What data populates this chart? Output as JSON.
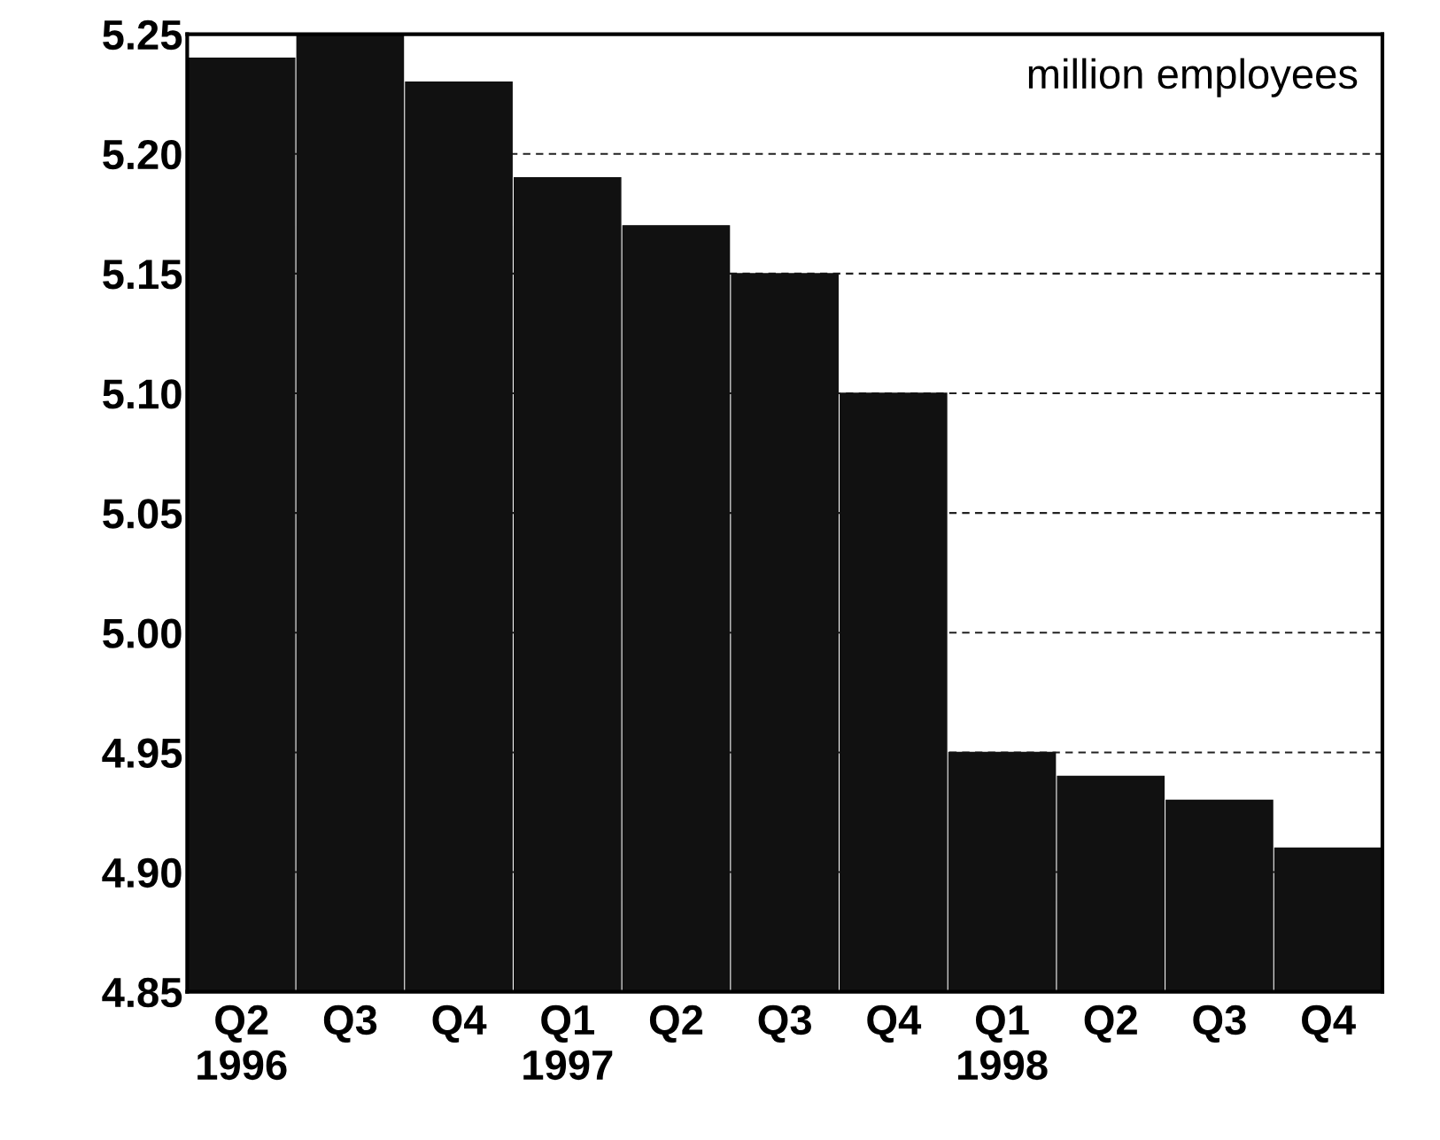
{
  "chart_data": {
    "type": "bar",
    "ylabel": "million employees",
    "categories": [
      "Q2\n1996",
      "Q3",
      "Q4",
      "Q1\n1997",
      "Q2",
      "Q3",
      "Q4",
      "Q1\n1998",
      "Q2",
      "Q3",
      "Q4"
    ],
    "values": [
      5.24,
      5.25,
      5.23,
      5.19,
      5.17,
      5.15,
      5.1,
      4.95,
      4.94,
      4.93,
      4.91
    ],
    "color": "#111111",
    "ylim": [
      4.85,
      5.25
    ],
    "yticks": [
      {
        "value": 4.85,
        "label": "4.85"
      },
      {
        "value": 4.9,
        "label": "4.90"
      },
      {
        "value": 4.95,
        "label": "4.95"
      },
      {
        "value": 5.0,
        "label": "5.00"
      },
      {
        "value": 5.05,
        "label": "5.05"
      },
      {
        "value": 5.1,
        "label": "5.10"
      },
      {
        "value": 5.15,
        "label": "5.15"
      },
      {
        "value": 5.2,
        "label": "5.20"
      },
      {
        "value": 5.25,
        "label": "5.25"
      }
    ],
    "grid": "y"
  }
}
